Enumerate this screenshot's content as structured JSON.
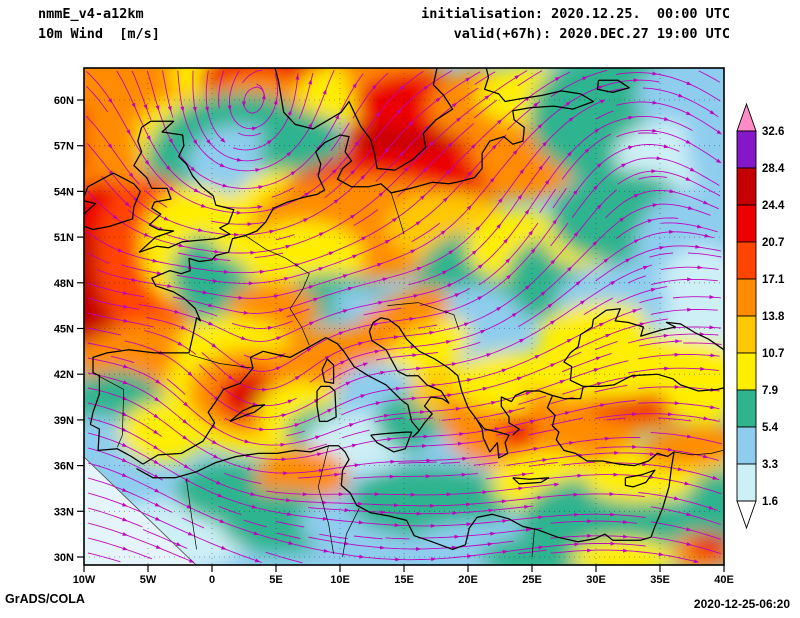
{
  "header": {
    "model": "nmmE_v4-a12km",
    "variable": "10m Wind  [m/s]",
    "initialisation": "initialisation: 2020.12.25.  00:00 UTC",
    "valid": "valid(+67h): 2020.DEC.27 19:00 UTC"
  },
  "axes": {
    "lat": [
      "60N",
      "57N",
      "54N",
      "51N",
      "48N",
      "45N",
      "42N",
      "39N",
      "36N",
      "33N",
      "30N"
    ],
    "lon": [
      "10W",
      "5W",
      "0",
      "5E",
      "10E",
      "15E",
      "20E",
      "25E",
      "30E",
      "35E",
      "40E"
    ]
  },
  "colorbar": {
    "unit": "m/s",
    "levels": [
      "32.6",
      "28.4",
      "24.4",
      "20.7",
      "17.1",
      "13.8",
      "10.7",
      "7.9",
      "5.4",
      "3.3",
      "1.6"
    ],
    "above_color": "#FF8CC8",
    "below_color": "#FFFFFF",
    "colors_top_to_bottom": [
      "#8418C8",
      "#C40000",
      "#EC0000",
      "#FF4500",
      "#FF8C00",
      "#FFC800",
      "#FFEE00",
      "#2FB48E",
      "#8FCDEE",
      "#CDEFF6"
    ]
  },
  "map": {
    "streamline_color": "#BE00BE",
    "coastline_color": "#000000",
    "grid_color": "#1A1A3A"
  },
  "footer": {
    "credit": "GrADS/COLA",
    "timestamp": "2020-12-25-06:20"
  }
}
